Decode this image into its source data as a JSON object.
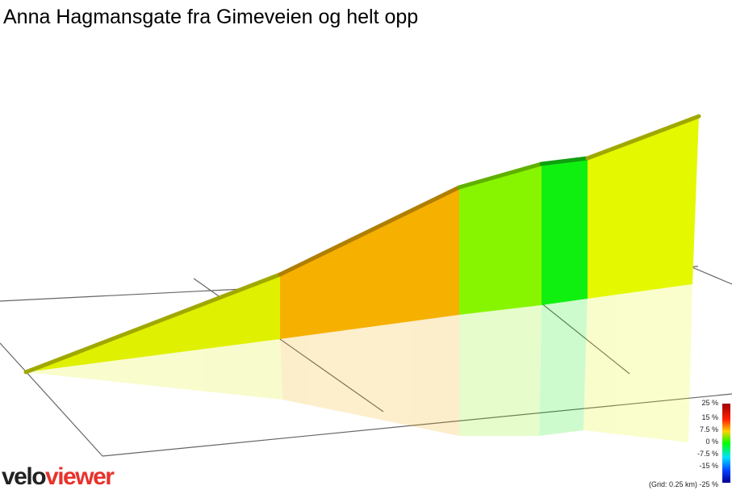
{
  "header": {
    "title": "Anna Hagmansgate fra Gimeveien og helt opp"
  },
  "legend": {
    "labels": [
      "25 %",
      "15 %",
      "7.5 %",
      "0 %",
      "-7.5 %",
      "-15 %",
      "-25 %"
    ],
    "grid_note": "(Grid: 0.25 km)"
  },
  "logo": {
    "part1": "velo",
    "part2": "viewer"
  }
}
